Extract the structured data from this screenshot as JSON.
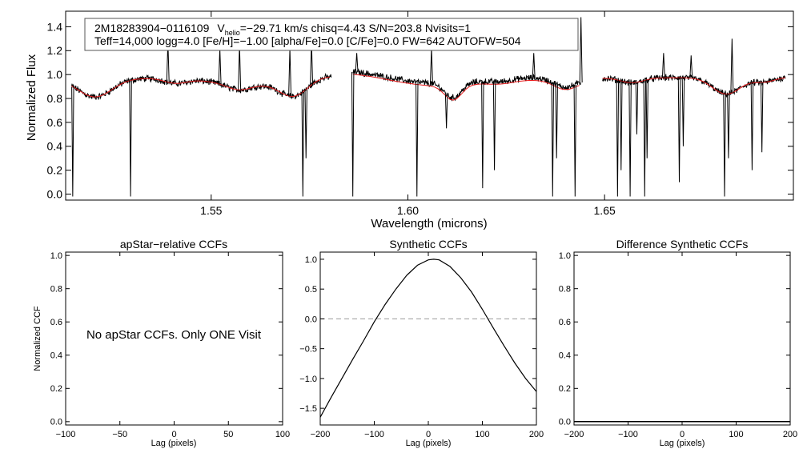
{
  "chart_data": [
    {
      "type": "line",
      "panel": "spectrum",
      "title": "",
      "xlabel": "Wavelength (microns)",
      "ylabel": "Normalized Flux",
      "xlim": [
        1.513,
        1.698
      ],
      "ylim": [
        -0.05,
        1.53
      ],
      "xticks": [
        1.55,
        1.6,
        1.65
      ],
      "xtick_labels": [
        "1.55",
        "1.60",
        "1.65"
      ],
      "yticks": [
        0.0,
        0.2,
        0.4,
        0.6,
        0.8,
        1.0,
        1.2,
        1.4
      ],
      "ytick_labels": [
        "0.0",
        "0.2",
        "0.4",
        "0.6",
        "0.8",
        "1.0",
        "1.2",
        "1.4"
      ],
      "annotation": {
        "line1_star": "2M18283904−0116109",
        "line1_v": "V",
        "line1_v_sub": "helio",
        "line1_rest": "=−29.71 km/s  chisq=4.43  S/N=203.8  Nvisits=1",
        "line2": "Teff=14,000 logg=4.0 [Fe/H]=−1.00 [alpha/Fe]=0.0 [C/Fe]=0.0 FW=642 AUTOFW=504"
      },
      "chips": [
        [
          1.5145,
          1.5805
        ],
        [
          1.586,
          1.644
        ],
        [
          1.6495,
          1.696
        ]
      ],
      "features": [
        {
          "x": 1.5205,
          "depth": 0.15,
          "width": 0.006
        },
        {
          "x": 1.541,
          "depth": 0.04,
          "width": 0.004
        },
        {
          "x": 1.5595,
          "depth": 0.07,
          "width": 0.012
        },
        {
          "x": 1.557,
          "depth": 0.04,
          "width": 0.004
        },
        {
          "x": 1.571,
          "depth": 0.14,
          "width": 0.005
        },
        {
          "x": 1.6,
          "depth": 0.05,
          "width": 0.01
        },
        {
          "x": 1.6115,
          "depth": 0.12,
          "width": 0.003
        },
        {
          "x": 1.6115,
          "depth": 0.06,
          "width": 0.01
        },
        {
          "x": 1.6235,
          "depth": 0.03,
          "width": 0.005
        },
        {
          "x": 1.64,
          "depth": 0.07,
          "width": 0.004
        },
        {
          "x": 1.657,
          "depth": 0.04,
          "width": 0.004
        },
        {
          "x": 1.681,
          "depth": 0.14,
          "width": 0.005
        },
        {
          "x": 1.6905,
          "depth": 0.04,
          "width": 0.004
        }
      ],
      "slopes": [
        {
          "x0": 1.5145,
          "x1": 1.5805,
          "y0": 0.96,
          "y1": 0.99
        },
        {
          "x0": 1.586,
          "x1": 1.644,
          "y0": 1.03,
          "y1": 0.96
        },
        {
          "x0": 1.6495,
          "x1": 1.696,
          "y0": 0.97,
          "y1": 0.98
        }
      ],
      "spikes_up": [
        {
          "x": 1.539,
          "y": 1.28
        },
        {
          "x": 1.5522,
          "y": 1.22
        },
        {
          "x": 1.5572,
          "y": 1.25
        },
        {
          "x": 1.57,
          "y": 1.22
        },
        {
          "x": 1.5755,
          "y": 1.28
        },
        {
          "x": 1.587,
          "y": 1.18
        },
        {
          "x": 1.606,
          "y": 1.22
        },
        {
          "x": 1.632,
          "y": 1.18
        },
        {
          "x": 1.644,
          "y": 1.48
        },
        {
          "x": 1.665,
          "y": 1.18
        },
        {
          "x": 1.672,
          "y": 1.16
        },
        {
          "x": 1.6824,
          "y": 1.3
        }
      ],
      "spikes_down": [
        {
          "x": 1.5148,
          "y": -0.02
        },
        {
          "x": 1.5295,
          "y": -0.02
        },
        {
          "x": 1.5733,
          "y": -0.02
        },
        {
          "x": 1.5741,
          "y": 0.3
        },
        {
          "x": 1.586,
          "y": -0.02
        },
        {
          "x": 1.6023,
          "y": -0.02
        },
        {
          "x": 1.6098,
          "y": 0.55
        },
        {
          "x": 1.619,
          "y": 0.05
        },
        {
          "x": 1.622,
          "y": 0.2
        },
        {
          "x": 1.6368,
          "y": -0.02
        },
        {
          "x": 1.6378,
          "y": 0.3
        },
        {
          "x": 1.6425,
          "y": -0.02
        },
        {
          "x": 1.6533,
          "y": -0.02
        },
        {
          "x": 1.6542,
          "y": 0.2
        },
        {
          "x": 1.6565,
          "y": -0.02
        },
        {
          "x": 1.6582,
          "y": 0.5
        },
        {
          "x": 1.6602,
          "y": -0.02
        },
        {
          "x": 1.6608,
          "y": 0.3
        },
        {
          "x": 1.669,
          "y": 0.1
        },
        {
          "x": 1.67,
          "y": 0.4
        },
        {
          "x": 1.6805,
          "y": -0.02
        },
        {
          "x": 1.6815,
          "y": 0.3
        },
        {
          "x": 1.6875,
          "y": 0.2
        },
        {
          "x": 1.69,
          "y": 0.35
        }
      ],
      "series": [
        {
          "name": "observed spectrum",
          "color": "#000000"
        },
        {
          "name": "synthetic model",
          "color": "#e8191a"
        }
      ]
    },
    {
      "type": "line",
      "panel": "apstar-ccf",
      "title": "apStar−relative CCFs",
      "xlabel": "Lag (pixels)",
      "ylabel": "Normalized CCF",
      "xlim": [
        -100,
        100
      ],
      "ylim": [
        -0.02,
        1.02
      ],
      "xticks": [
        -100,
        -50,
        0,
        50,
        100
      ],
      "xtick_labels": [
        "−100",
        "−50",
        "0",
        "50",
        "100"
      ],
      "yticks": [
        0.0,
        0.2,
        0.4,
        0.6,
        0.8,
        1.0
      ],
      "ytick_labels": [
        "0.0",
        "0.2",
        "0.4",
        "0.6",
        "0.8",
        "1.0"
      ],
      "message": "No apStar CCFs.  Only ONE Visit",
      "series": []
    },
    {
      "type": "line",
      "panel": "synthetic-ccf",
      "title": "Synthetic CCFs",
      "xlabel": "Lag (pixels)",
      "ylabel": "",
      "xlim": [
        -200,
        200
      ],
      "ylim": [
        -1.78,
        1.12
      ],
      "xticks": [
        -200,
        -100,
        0,
        100,
        200
      ],
      "xtick_labels": [
        "−200",
        "−100",
        "0",
        "100",
        "200"
      ],
      "yticks": [
        -1.5,
        -1.0,
        -0.5,
        0.0,
        0.5,
        1.0
      ],
      "ytick_labels": [
        "−1.5",
        "−1.0",
        "−0.5",
        "0.0",
        "0.5",
        "1.0"
      ],
      "zero_line": 0.0,
      "series": [
        {
          "name": "synthetic ccf",
          "color": "#000000",
          "x": [
            -200,
            -180,
            -160,
            -140,
            -120,
            -100,
            -80,
            -60,
            -40,
            -20,
            0,
            10,
            20,
            40,
            60,
            80,
            100,
            120,
            140,
            160,
            180,
            200
          ],
          "y": [
            -1.65,
            -1.32,
            -1.0,
            -0.68,
            -0.37,
            -0.05,
            0.24,
            0.5,
            0.73,
            0.9,
            0.99,
            1.0,
            0.99,
            0.88,
            0.69,
            0.45,
            0.16,
            -0.15,
            -0.45,
            -0.74,
            -1.0,
            -1.22
          ]
        }
      ]
    },
    {
      "type": "line",
      "panel": "difference-ccf",
      "title": "Difference Synthetic CCFs",
      "xlabel": "Lag (pixels)",
      "ylabel": "",
      "xlim": [
        -200,
        200
      ],
      "ylim": [
        -0.02,
        1.02
      ],
      "xticks": [
        -200,
        -100,
        0,
        100,
        200
      ],
      "xtick_labels": [
        "−200",
        "−100",
        "0",
        "100",
        "200"
      ],
      "yticks": [
        0.0,
        0.2,
        0.4,
        0.6,
        0.8,
        1.0
      ],
      "ytick_labels": [
        "0.0",
        "0.2",
        "0.4",
        "0.6",
        "0.8",
        "1.0"
      ],
      "series": [
        {
          "name": "difference",
          "color": "#000000",
          "x": [
            -200,
            200
          ],
          "y": [
            0.0,
            0.0
          ]
        }
      ]
    }
  ]
}
